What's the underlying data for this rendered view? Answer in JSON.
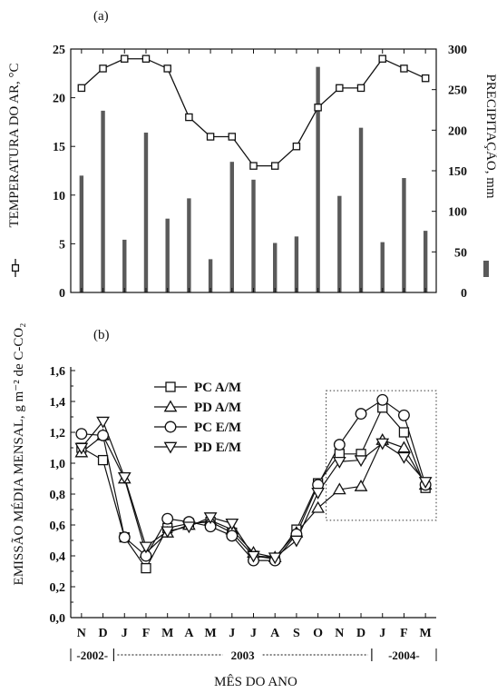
{
  "panel_a": {
    "label": "(a)",
    "left_axis_label": "TEMPERATURA DO AR, °C",
    "right_axis_label": "PRECIPITAÇÃO, mm",
    "chart_data": {
      "type": "bar+line",
      "categories": [
        "N",
        "D",
        "J",
        "F",
        "M",
        "A",
        "M",
        "J",
        "J",
        "A",
        "S",
        "O",
        "N",
        "D",
        "J",
        "F",
        "M"
      ],
      "temperature": [
        21,
        23,
        24,
        24,
        23,
        18,
        16,
        16,
        13,
        13,
        15,
        19,
        21,
        21,
        24,
        23,
        22
      ],
      "precipitation": [
        144,
        224,
        65,
        197,
        91,
        116,
        41,
        161,
        139,
        61,
        69,
        278,
        119,
        203,
        62,
        141,
        76
      ],
      "left_ylim": [
        0,
        25
      ],
      "left_ticks": [
        0,
        5,
        10,
        15,
        20,
        25
      ],
      "right_ylim": [
        0,
        300
      ],
      "right_ticks": [
        0,
        50,
        100,
        150,
        200,
        250,
        300
      ],
      "colors": {
        "bars": "#5a5a5a",
        "line": "#111111"
      }
    }
  },
  "panel_b": {
    "label": "(b)",
    "y_axis_label": "EMISSÃO MÉDIA MENSAL, g m⁻² de C-CO₂",
    "x_axis_label": "MÊS DO ANO",
    "chart_data": {
      "type": "line",
      "categories": [
        "N",
        "D",
        "J",
        "F",
        "M",
        "A",
        "M",
        "J",
        "J",
        "A",
        "S",
        "O",
        "N",
        "D",
        "J",
        "F",
        "M"
      ],
      "ylim": [
        0,
        1.6
      ],
      "yticks": [
        "0,0",
        "0,2",
        "0,4",
        "0,6",
        "0,8",
        "1,0",
        "1,2",
        "1,4",
        "1,6"
      ],
      "series": [
        {
          "name": "PC A/M",
          "marker": "square",
          "values": [
            1.1,
            1.02,
            0.52,
            0.32,
            0.58,
            0.61,
            0.62,
            0.55,
            0.4,
            0.38,
            0.57,
            0.87,
            1.06,
            1.06,
            1.36,
            1.2,
            0.84
          ]
        },
        {
          "name": "PD A/M",
          "marker": "triangle-up",
          "values": [
            1.07,
            1.18,
            0.9,
            0.42,
            0.55,
            0.6,
            0.63,
            0.57,
            0.42,
            0.39,
            0.55,
            0.71,
            0.83,
            0.85,
            1.15,
            1.1,
            0.86
          ]
        },
        {
          "name": "PC E/M",
          "marker": "circle",
          "values": [
            1.19,
            1.18,
            0.52,
            0.4,
            0.64,
            0.62,
            0.59,
            0.53,
            0.37,
            0.37,
            0.54,
            0.86,
            1.12,
            1.32,
            1.41,
            1.31,
            0.86
          ]
        },
        {
          "name": "PD E/M",
          "marker": "triangle-down",
          "values": [
            1.1,
            1.27,
            0.91,
            0.46,
            0.56,
            0.59,
            0.65,
            0.61,
            0.4,
            0.39,
            0.5,
            0.81,
            1.01,
            1.02,
            1.13,
            1.04,
            0.88
          ]
        }
      ],
      "periods": [
        {
          "label": "-2002-",
          "start": 0,
          "end": 1
        },
        {
          "label": "2003",
          "start": 2,
          "end": 13
        },
        {
          "label": "-2004-",
          "start": 14,
          "end": 16
        }
      ],
      "highlight_box": {
        "start_index": 12,
        "end_index": 16,
        "ymin": 0.63,
        "ymax": 1.47
      }
    }
  }
}
